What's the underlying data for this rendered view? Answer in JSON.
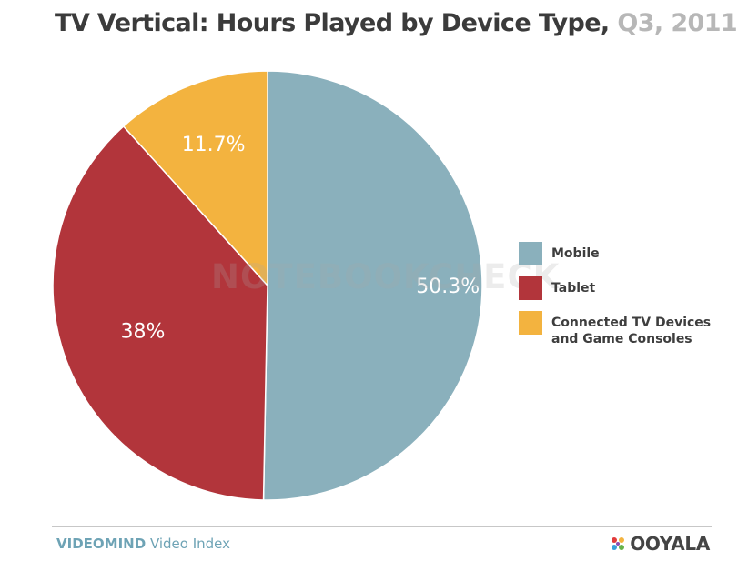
{
  "title": {
    "main": "TV Vertical: Hours Played by Device Type,",
    "sub": "Q3, 2011"
  },
  "chart_data": {
    "type": "pie",
    "categories": [
      "Mobile",
      "Tablet",
      "Connected TV Devices and Game Consoles"
    ],
    "values": [
      50.3,
      38,
      11.7
    ],
    "value_labels": [
      "50.3%",
      "38%",
      "11.7%"
    ],
    "colors": [
      "#8ab0bc",
      "#b2353b",
      "#f3b33f"
    ],
    "start_angle": "12 o'clock",
    "direction": "clockwise",
    "legend_placement": "right"
  },
  "legend": {
    "items": [
      {
        "label": "Mobile",
        "color": "#8ab0bc"
      },
      {
        "label": "Tablet",
        "color": "#b2353b"
      },
      {
        "label": "Connected TV Devices and Game Consoles",
        "color": "#f3b33f"
      }
    ]
  },
  "footer": {
    "brand": "VIDEOMIND",
    "suffix": "Video Index",
    "logo_text": "OOYALA",
    "logo_colors": [
      "#e23b3b",
      "#f3b33f",
      "#3ba0d8",
      "#66b34a",
      "#8a4fb0"
    ]
  },
  "watermark": {
    "text": "NOTEBOOKCHECK"
  }
}
